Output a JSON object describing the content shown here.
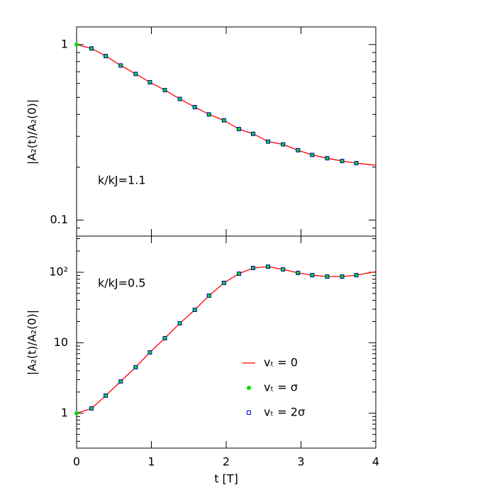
{
  "chart_data": [
    {
      "type": "line",
      "log_y": true,
      "y_label": "|A₂(t)/A₂(0)|",
      "annotation": "k/kJ=1.1",
      "xlim": [
        0,
        4
      ],
      "xticks": [
        0,
        1,
        2,
        3,
        4
      ],
      "ylim": [
        0.081,
        1.26
      ],
      "yticks": [
        0.1,
        1
      ],
      "series": [
        {
          "color": "#ff0000",
          "marker": "line",
          "x": [
            0,
            0.2,
            0.39,
            0.59,
            0.79,
            0.98,
            1.18,
            1.38,
            1.58,
            1.77,
            1.97,
            2.17,
            2.36,
            2.56,
            2.76,
            2.96,
            3.15,
            3.35,
            3.55,
            3.74,
            4
          ],
          "values": [
            1,
            0.95,
            0.86,
            0.76,
            0.68,
            0.61,
            0.55,
            0.49,
            0.44,
            0.4,
            0.37,
            0.33,
            0.31,
            0.28,
            0.27,
            0.25,
            0.235,
            0.225,
            0.217,
            0.211,
            0.205
          ]
        },
        {
          "color": "#00dd00",
          "marker": "dot",
          "x": [
            0,
            0.2,
            0.39,
            0.59,
            0.79,
            0.98,
            1.18,
            1.38,
            1.58,
            1.77,
            1.97,
            2.17,
            2.36,
            2.56,
            2.76,
            2.96,
            3.15,
            3.35,
            3.55,
            3.74
          ],
          "values": [
            1,
            0.95,
            0.86,
            0.76,
            0.68,
            0.61,
            0.55,
            0.49,
            0.44,
            0.4,
            0.37,
            0.33,
            0.31,
            0.28,
            0.27,
            0.25,
            0.235,
            0.225,
            0.217,
            0.211
          ]
        },
        {
          "color": "#0000dd",
          "marker": "square",
          "x": [
            0.2,
            0.39,
            0.59,
            0.79,
            0.98,
            1.18,
            1.38,
            1.58,
            1.77,
            1.97,
            2.17,
            2.36,
            2.56,
            2.76,
            2.96,
            3.15,
            3.35,
            3.55,
            3.74
          ],
          "values": [
            0.95,
            0.86,
            0.76,
            0.68,
            0.61,
            0.55,
            0.49,
            0.44,
            0.4,
            0.37,
            0.33,
            0.31,
            0.28,
            0.27,
            0.25,
            0.235,
            0.225,
            0.217,
            0.211
          ]
        }
      ]
    },
    {
      "type": "line",
      "log_y": true,
      "y_label": "|A₂(t)/A₂(0)|",
      "x_label": "t [T]",
      "annotation": "k/kJ=0.5",
      "legend": "lower right",
      "xlim": [
        0,
        4
      ],
      "xticks": [
        0,
        1,
        2,
        3,
        4
      ],
      "ylim": [
        0.32,
        326
      ],
      "yticks": [
        1,
        10,
        {
          "value": 100,
          "label": "10²"
        }
      ],
      "series": [
        {
          "name": "vₜ = 0",
          "color": "#ff0000",
          "marker": "line",
          "x": [
            0,
            0.2,
            0.39,
            0.59,
            0.79,
            0.98,
            1.18,
            1.38,
            1.58,
            1.77,
            1.97,
            2.17,
            2.36,
            2.56,
            2.76,
            2.96,
            3.15,
            3.35,
            3.55,
            3.74,
            4
          ],
          "values": [
            1,
            1.17,
            1.78,
            2.83,
            4.5,
            7.3,
            11.6,
            18.9,
            29.3,
            46.6,
            70.6,
            95.5,
            115,
            120,
            110,
            98,
            91,
            87,
            87,
            91,
            102
          ]
        },
        {
          "name": "vₜ = σ",
          "color": "#00dd00",
          "marker": "dot",
          "x": [
            0,
            0.2,
            0.39,
            0.59,
            0.79,
            0.98,
            1.18,
            1.38,
            1.58,
            1.77,
            1.97,
            2.17,
            2.36,
            2.56,
            2.76,
            2.96,
            3.15,
            3.35,
            3.55,
            3.74
          ],
          "values": [
            1,
            1.17,
            1.78,
            2.83,
            4.5,
            7.3,
            11.6,
            18.9,
            29.3,
            46.6,
            70.6,
            95.5,
            115,
            120,
            110,
            98,
            91,
            87,
            87,
            91
          ]
        },
        {
          "name": "vₜ = 2σ",
          "color": "#0000dd",
          "marker": "square",
          "x": [
            0.2,
            0.39,
            0.59,
            0.79,
            0.98,
            1.18,
            1.38,
            1.58,
            1.77,
            1.97,
            2.17,
            2.36,
            2.56,
            2.76,
            2.96,
            3.15,
            3.35,
            3.55,
            3.74
          ],
          "values": [
            1.17,
            1.78,
            2.83,
            4.5,
            7.3,
            11.6,
            18.9,
            29.3,
            46.6,
            70.6,
            95.5,
            115,
            120,
            110,
            98,
            91,
            87,
            87,
            91
          ]
        }
      ]
    }
  ]
}
